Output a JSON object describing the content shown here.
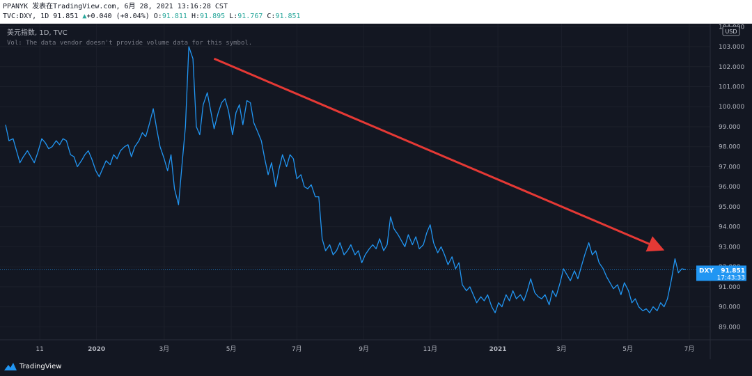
{
  "header": {
    "line1": "PPANYK 发表在TradingView.com, 6月 28, 2021 13:16:28 CST",
    "symbol_prefix": "TVC:DXY, 1D 91.851",
    "change": "+0.040 (+0.04%)",
    "o_label": "O:",
    "o_value": "91.811",
    "h_label": "H:",
    "h_value": "91.895",
    "l_label": "L:",
    "l_value": "91.767",
    "c_label": "C:",
    "c_value": "91.851"
  },
  "legend": {
    "title": "美元指数, 1D, TVC",
    "volume_note": "Vol: The data vendor doesn't provide volume data for this symbol."
  },
  "currency_label": "USD",
  "price_badge": {
    "symbol": "DXY",
    "price": "91.851",
    "time": "17:43:33"
  },
  "brand": {
    "name": "TradingView"
  },
  "colors": {
    "background": "#131722",
    "line": "#2196f3",
    "arrow": "#e53935",
    "axis_text": "#b2b5be"
  },
  "chart_data": {
    "type": "line",
    "title": "美元指数, 1D, TVC",
    "ylabel": "USD",
    "ylim": [
      88.35,
      104.15
    ],
    "y_ticks": [
      "89.000",
      "90.000",
      "91.000",
      "92.000",
      "93.000",
      "94.000",
      "95.000",
      "96.000",
      "97.000",
      "98.000",
      "99.000",
      "100.000",
      "101.000",
      "102.000",
      "103.000",
      "104.000"
    ],
    "x_ticks": [
      {
        "label": "11",
        "t": 0.05,
        "bold": false
      },
      {
        "label": "2020",
        "t": 0.133,
        "bold": true
      },
      {
        "label": "3月",
        "t": 0.232,
        "bold": false
      },
      {
        "label": "5月",
        "t": 0.33,
        "bold": false
      },
      {
        "label": "7月",
        "t": 0.426,
        "bold": false
      },
      {
        "label": "9月",
        "t": 0.524,
        "bold": false
      },
      {
        "label": "11月",
        "t": 0.621,
        "bold": false
      },
      {
        "label": "2021",
        "t": 0.72,
        "bold": true
      },
      {
        "label": "3月",
        "t": 0.813,
        "bold": false
      },
      {
        "label": "5月",
        "t": 0.91,
        "bold": false
      },
      {
        "label": "7月",
        "t": 1.0,
        "bold": false
      }
    ],
    "series": [
      {
        "name": "DXY",
        "points": [
          [
            0.0,
            99.1
          ],
          [
            0.005,
            98.3
          ],
          [
            0.011,
            98.4
          ],
          [
            0.016,
            97.8
          ],
          [
            0.021,
            97.2
          ],
          [
            0.026,
            97.5
          ],
          [
            0.032,
            97.8
          ],
          [
            0.037,
            97.5
          ],
          [
            0.042,
            97.2
          ],
          [
            0.047,
            97.7
          ],
          [
            0.053,
            98.4
          ],
          [
            0.058,
            98.2
          ],
          [
            0.063,
            97.9
          ],
          [
            0.068,
            98.0
          ],
          [
            0.074,
            98.3
          ],
          [
            0.079,
            98.1
          ],
          [
            0.084,
            98.4
          ],
          [
            0.089,
            98.3
          ],
          [
            0.095,
            97.6
          ],
          [
            0.1,
            97.5
          ],
          [
            0.105,
            97.0
          ],
          [
            0.111,
            97.3
          ],
          [
            0.116,
            97.6
          ],
          [
            0.121,
            97.8
          ],
          [
            0.126,
            97.4
          ],
          [
            0.132,
            96.8
          ],
          [
            0.137,
            96.5
          ],
          [
            0.142,
            96.9
          ],
          [
            0.147,
            97.3
          ],
          [
            0.153,
            97.1
          ],
          [
            0.158,
            97.6
          ],
          [
            0.163,
            97.4
          ],
          [
            0.168,
            97.8
          ],
          [
            0.174,
            98.0
          ],
          [
            0.179,
            98.1
          ],
          [
            0.184,
            97.5
          ],
          [
            0.189,
            98.0
          ],
          [
            0.195,
            98.3
          ],
          [
            0.2,
            98.7
          ],
          [
            0.205,
            98.5
          ],
          [
            0.21,
            99.1
          ],
          [
            0.216,
            99.9
          ],
          [
            0.221,
            98.9
          ],
          [
            0.226,
            98.0
          ],
          [
            0.232,
            97.4
          ],
          [
            0.237,
            96.8
          ],
          [
            0.242,
            97.6
          ],
          [
            0.247,
            95.9
          ],
          [
            0.253,
            95.1
          ],
          [
            0.258,
            97.1
          ],
          [
            0.263,
            99.0
          ],
          [
            0.268,
            103.0
          ],
          [
            0.274,
            102.4
          ],
          [
            0.279,
            99.0
          ],
          [
            0.284,
            98.6
          ],
          [
            0.289,
            100.1
          ],
          [
            0.295,
            100.7
          ],
          [
            0.3,
            99.8
          ],
          [
            0.305,
            98.9
          ],
          [
            0.311,
            99.7
          ],
          [
            0.316,
            100.2
          ],
          [
            0.321,
            100.4
          ],
          [
            0.326,
            99.8
          ],
          [
            0.332,
            98.6
          ],
          [
            0.337,
            99.7
          ],
          [
            0.342,
            100.1
          ],
          [
            0.347,
            99.1
          ],
          [
            0.353,
            100.3
          ],
          [
            0.358,
            100.2
          ],
          [
            0.363,
            99.2
          ],
          [
            0.368,
            98.8
          ],
          [
            0.374,
            98.3
          ],
          [
            0.379,
            97.4
          ],
          [
            0.384,
            96.6
          ],
          [
            0.389,
            97.2
          ],
          [
            0.395,
            96.0
          ],
          [
            0.4,
            96.9
          ],
          [
            0.405,
            97.6
          ],
          [
            0.411,
            97.0
          ],
          [
            0.416,
            97.6
          ],
          [
            0.421,
            97.4
          ],
          [
            0.426,
            96.4
          ],
          [
            0.432,
            96.6
          ],
          [
            0.437,
            96.0
          ],
          [
            0.442,
            95.9
          ],
          [
            0.447,
            96.1
          ],
          [
            0.453,
            95.5
          ],
          [
            0.458,
            95.5
          ],
          [
            0.463,
            93.4
          ],
          [
            0.468,
            92.8
          ],
          [
            0.474,
            93.1
          ],
          [
            0.479,
            92.6
          ],
          [
            0.484,
            92.8
          ],
          [
            0.489,
            93.2
          ],
          [
            0.495,
            92.6
          ],
          [
            0.5,
            92.8
          ],
          [
            0.505,
            93.1
          ],
          [
            0.511,
            92.6
          ],
          [
            0.516,
            92.8
          ],
          [
            0.521,
            92.2
          ],
          [
            0.526,
            92.6
          ],
          [
            0.532,
            92.9
          ],
          [
            0.537,
            93.1
          ],
          [
            0.542,
            92.9
          ],
          [
            0.547,
            93.4
          ],
          [
            0.553,
            92.8
          ],
          [
            0.558,
            93.1
          ],
          [
            0.563,
            94.5
          ],
          [
            0.568,
            93.9
          ],
          [
            0.574,
            93.6
          ],
          [
            0.579,
            93.3
          ],
          [
            0.584,
            93.0
          ],
          [
            0.589,
            93.6
          ],
          [
            0.595,
            93.1
          ],
          [
            0.6,
            93.5
          ],
          [
            0.605,
            92.9
          ],
          [
            0.611,
            93.1
          ],
          [
            0.616,
            93.7
          ],
          [
            0.621,
            94.1
          ],
          [
            0.626,
            93.2
          ],
          [
            0.632,
            92.7
          ],
          [
            0.637,
            93.0
          ],
          [
            0.642,
            92.6
          ],
          [
            0.647,
            92.1
          ],
          [
            0.653,
            92.5
          ],
          [
            0.658,
            91.9
          ],
          [
            0.663,
            92.2
          ],
          [
            0.668,
            91.1
          ],
          [
            0.674,
            90.8
          ],
          [
            0.679,
            91.0
          ],
          [
            0.684,
            90.6
          ],
          [
            0.689,
            90.2
          ],
          [
            0.695,
            90.5
          ],
          [
            0.7,
            90.3
          ],
          [
            0.705,
            90.6
          ],
          [
            0.711,
            90.0
          ],
          [
            0.716,
            89.7
          ],
          [
            0.721,
            90.2
          ],
          [
            0.726,
            90.0
          ],
          [
            0.732,
            90.6
          ],
          [
            0.737,
            90.3
          ],
          [
            0.742,
            90.8
          ],
          [
            0.747,
            90.4
          ],
          [
            0.753,
            90.6
          ],
          [
            0.758,
            90.3
          ],
          [
            0.763,
            90.8
          ],
          [
            0.768,
            91.4
          ],
          [
            0.774,
            90.7
          ],
          [
            0.779,
            90.5
          ],
          [
            0.784,
            90.4
          ],
          [
            0.789,
            90.6
          ],
          [
            0.795,
            90.1
          ],
          [
            0.8,
            90.8
          ],
          [
            0.805,
            90.5
          ],
          [
            0.811,
            91.2
          ],
          [
            0.816,
            91.9
          ],
          [
            0.821,
            91.6
          ],
          [
            0.826,
            91.3
          ],
          [
            0.832,
            91.8
          ],
          [
            0.837,
            91.4
          ],
          [
            0.842,
            92.0
          ],
          [
            0.847,
            92.6
          ],
          [
            0.853,
            93.2
          ],
          [
            0.858,
            92.6
          ],
          [
            0.863,
            92.8
          ],
          [
            0.868,
            92.2
          ],
          [
            0.874,
            91.9
          ],
          [
            0.879,
            91.5
          ],
          [
            0.884,
            91.2
          ],
          [
            0.889,
            90.9
          ],
          [
            0.895,
            91.1
          ],
          [
            0.9,
            90.6
          ],
          [
            0.905,
            91.2
          ],
          [
            0.911,
            90.8
          ],
          [
            0.916,
            90.2
          ],
          [
            0.921,
            90.4
          ],
          [
            0.926,
            90.0
          ],
          [
            0.932,
            89.8
          ],
          [
            0.937,
            89.9
          ],
          [
            0.942,
            89.7
          ],
          [
            0.947,
            90.0
          ],
          [
            0.953,
            89.8
          ],
          [
            0.958,
            90.2
          ],
          [
            0.963,
            90.0
          ],
          [
            0.968,
            90.4
          ],
          [
            0.974,
            91.4
          ],
          [
            0.979,
            92.4
          ],
          [
            0.984,
            91.7
          ],
          [
            0.989,
            91.9
          ],
          [
            0.995,
            91.85
          ]
        ]
      }
    ],
    "last_value": 91.851,
    "annotations": [
      {
        "type": "arrow",
        "from": [
          0.305,
          102.4
        ],
        "to": [
          0.958,
          92.9
        ],
        "color": "#e53935"
      }
    ]
  }
}
